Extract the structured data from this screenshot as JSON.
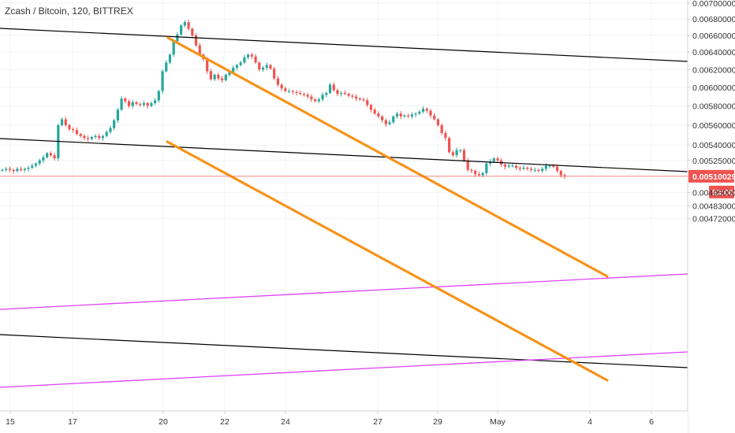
{
  "symbol_title": "Zcash / Bitcoin, 120, BITTREX",
  "chart_data": {
    "type": "candlestick",
    "title": "Zcash / Bitcoin, 120, BITTREX",
    "x_ticks": [
      "15",
      "17",
      "20",
      "22",
      "24",
      "27",
      "29",
      "May",
      "4",
      "6"
    ],
    "y_ticks": [
      "0.00700000",
      "0.00680000",
      "0.00660000",
      "0.00640000",
      "0.00620000",
      "0.00600000",
      "0.00580000",
      "0.00560000",
      "0.00540000",
      "0.00525000",
      "0.00510029",
      "0.00495000",
      "0.00483000",
      "0.00472000"
    ],
    "last_price": "0.00510029",
    "countdown": "53:00",
    "y_scale": "log",
    "grid": true,
    "colors": {
      "up": "#26a69a",
      "down": "#ef5350",
      "channel": "#f7931a",
      "support": "#e040fb",
      "trend": "#000000",
      "price_line": "#ef5350"
    },
    "closes": [
      0.00516,
      0.00517,
      0.00516,
      0.00515,
      0.00517,
      0.00516,
      0.00517,
      0.00518,
      0.0052,
      0.00522,
      0.00525,
      0.00528,
      0.00532,
      0.0053,
      0.00527,
      0.0056,
      0.00566,
      0.0056,
      0.00556,
      0.00555,
      0.00551,
      0.00549,
      0.00547,
      0.00546,
      0.00548,
      0.00549,
      0.00547,
      0.00549,
      0.00553,
      0.00557,
      0.00565,
      0.00576,
      0.00588,
      0.00585,
      0.0058,
      0.00584,
      0.00582,
      0.00581,
      0.00583,
      0.0058,
      0.00583,
      0.00586,
      0.00596,
      0.00618,
      0.00628,
      0.00637,
      0.00653,
      0.00661,
      0.00672,
      0.00676,
      0.00668,
      0.0066,
      0.00648,
      0.00637,
      0.00632,
      0.00618,
      0.00609,
      0.00614,
      0.0061,
      0.00608,
      0.00614,
      0.00617,
      0.00622,
      0.00625,
      0.00628,
      0.00634,
      0.00637,
      0.00635,
      0.00628,
      0.0062,
      0.00622,
      0.00625,
      0.00621,
      0.0061,
      0.00603,
      0.00599,
      0.00596,
      0.00596,
      0.00595,
      0.00594,
      0.00593,
      0.00592,
      0.0059,
      0.00587,
      0.00585,
      0.00587,
      0.00592,
      0.00594,
      0.00603,
      0.00597,
      0.00593,
      0.00594,
      0.00593,
      0.00591,
      0.0059,
      0.00588,
      0.00587,
      0.00586,
      0.00581,
      0.00576,
      0.00572,
      0.00569,
      0.00565,
      0.00561,
      0.00563,
      0.00569,
      0.00572,
      0.00569,
      0.0057,
      0.00569,
      0.00571,
      0.00572,
      0.00574,
      0.00577,
      0.00575,
      0.0057,
      0.00566,
      0.0056,
      0.00552,
      0.00547,
      0.00533,
      0.0053,
      0.00535,
      0.00535,
      0.00525,
      0.00516,
      0.00515,
      0.00512,
      0.00511,
      0.00513,
      0.00522,
      0.00524,
      0.00527,
      0.00525,
      0.00521,
      0.00519,
      0.0052,
      0.0052,
      0.00518,
      0.00517,
      0.00518,
      0.00517,
      0.00516,
      0.00516,
      0.00515,
      0.00517,
      0.0052,
      0.0052,
      0.00519,
      0.00515,
      0.00511,
      0.0051
    ]
  }
}
